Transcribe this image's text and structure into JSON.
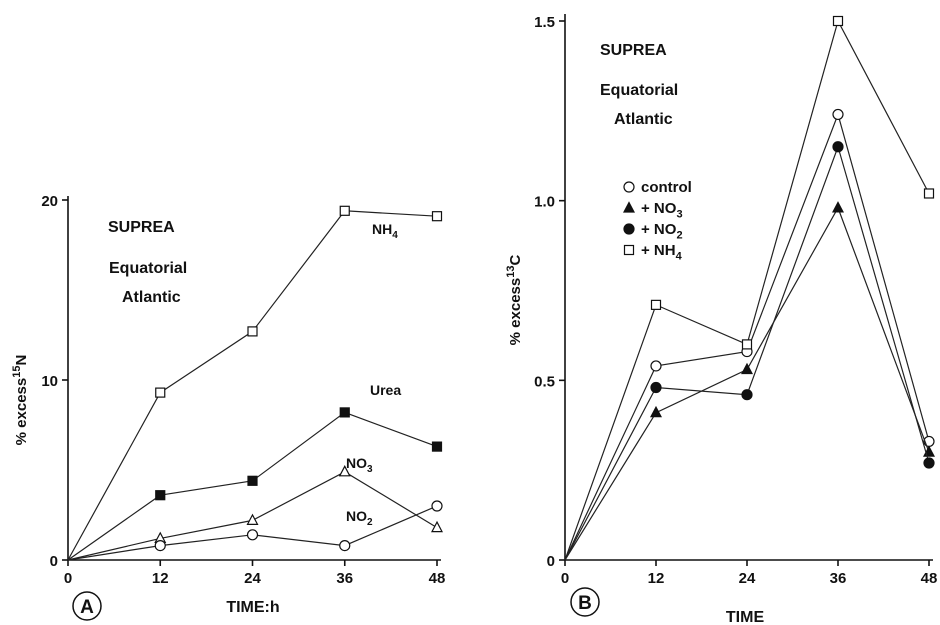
{
  "chart_data": [
    {
      "type": "line",
      "panel_label": "A",
      "title_lines": [
        "SUPREA",
        "Equatorial",
        "Atlantic"
      ],
      "xlabel": "TIME:h",
      "ylabel_main": "% excess",
      "ylabel_sup": "15",
      "ylabel_end": "N",
      "xlim": [
        0,
        48
      ],
      "ylim": [
        0,
        20
      ],
      "x_ticks": [
        "0",
        "12",
        "24",
        "36",
        "48"
      ],
      "y_ticks": [
        "0",
        "10",
        "20"
      ],
      "series": [
        {
          "name": "NH4",
          "label_main": "NH",
          "label_sub": "4",
          "marker": "open-square",
          "x": [
            0,
            12,
            24,
            36,
            48
          ],
          "values": [
            0,
            9.3,
            12.7,
            19.4,
            19.1
          ]
        },
        {
          "name": "Urea",
          "label_main": "Urea",
          "label_sub": "",
          "marker": "filled-square",
          "x": [
            0,
            12,
            24,
            36,
            48
          ],
          "values": [
            0,
            3.6,
            4.4,
            8.2,
            6.3
          ]
        },
        {
          "name": "NO3",
          "label_main": "NO",
          "label_sub": "3",
          "marker": "open-triangle",
          "x": [
            0,
            12,
            24,
            36,
            48
          ],
          "values": [
            0,
            1.2,
            2.2,
            4.9,
            1.8
          ]
        },
        {
          "name": "NO2",
          "label_main": "NO",
          "label_sub": "2",
          "marker": "open-circle",
          "x": [
            0,
            12,
            24,
            36,
            48
          ],
          "values": [
            0,
            0.8,
            1.4,
            0.8,
            3.0
          ]
        }
      ]
    },
    {
      "type": "line",
      "panel_label": "B",
      "title_lines": [
        "SUPREA",
        "Equatorial",
        "Atlantic"
      ],
      "xlabel": "TIME",
      "ylabel_main": "% excess",
      "ylabel_sup": "13",
      "ylabel_end": "C",
      "xlim": [
        0,
        48
      ],
      "ylim": [
        0,
        1.5
      ],
      "x_ticks": [
        "0",
        "12",
        "24",
        "36",
        "48"
      ],
      "y_ticks": [
        "0",
        "0.5",
        "1.0",
        "1.5"
      ],
      "legend_position": "left-middle",
      "series": [
        {
          "name": "control",
          "legend_main": "control",
          "legend_sub": "",
          "marker": "open-circle",
          "x": [
            0,
            12,
            24,
            36,
            48
          ],
          "values": [
            0,
            0.54,
            0.58,
            1.24,
            0.33
          ]
        },
        {
          "name": "+ NO3",
          "legend_main": "+ NO",
          "legend_sub": "3",
          "marker": "filled-triangle",
          "x": [
            0,
            12,
            24,
            36,
            48
          ],
          "values": [
            0,
            0.41,
            0.53,
            0.98,
            0.3
          ]
        },
        {
          "name": "+ NO2",
          "legend_main": "+ NO",
          "legend_sub": "2",
          "marker": "filled-circle",
          "x": [
            0,
            12,
            24,
            36,
            48
          ],
          "values": [
            0,
            0.48,
            0.46,
            1.15,
            0.27
          ]
        },
        {
          "name": "+ NH4",
          "legend_main": "+ NH",
          "legend_sub": "4",
          "marker": "open-square",
          "x": [
            0,
            12,
            24,
            36,
            48
          ],
          "values": [
            0,
            0.71,
            0.6,
            1.5,
            1.02
          ]
        }
      ]
    }
  ]
}
